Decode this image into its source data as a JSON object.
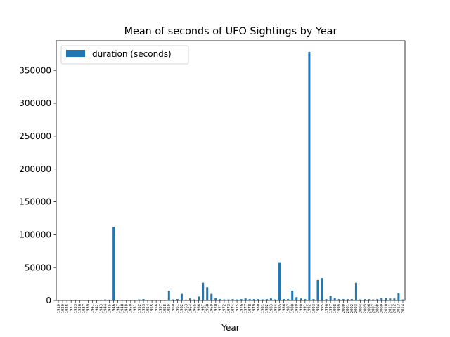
{
  "chart_data": {
    "type": "bar",
    "title": "Mean of seconds of UFO Sightings by Year",
    "xlabel": "Year",
    "ylabel": "",
    "ylim": [
      0,
      395000
    ],
    "yticks": [
      0,
      50000,
      100000,
      150000,
      200000,
      250000,
      300000,
      350000
    ],
    "yticklabels": [
      "0",
      "50000",
      "100000",
      "150000",
      "200000",
      "250000",
      "300000",
      "350000"
    ],
    "legend": "upper-left",
    "grid": false,
    "color": "#1f77b4",
    "categories": [
      "1910",
      "1920",
      "1925",
      "1931",
      "1933",
      "1936",
      "1937",
      "1939",
      "1941",
      "1942",
      "1943",
      "1944",
      "1945",
      "1946",
      "1947",
      "1948",
      "1949",
      "1950",
      "1951",
      "1952",
      "1953",
      "1954",
      "1955",
      "1956",
      "1957",
      "1958",
      "1959",
      "1960",
      "1961",
      "1962",
      "1963",
      "1964",
      "1965",
      "1966",
      "1967",
      "1968",
      "1969",
      "1970",
      "1971",
      "1972",
      "1973",
      "1974",
      "1975",
      "1976",
      "1977",
      "1978",
      "1979",
      "1980",
      "1981",
      "1982",
      "1983",
      "1984",
      "1985",
      "1986",
      "1987",
      "1988",
      "1989",
      "1990",
      "1991",
      "1992",
      "1993",
      "1994",
      "1995",
      "1996",
      "1997",
      "1998",
      "1999",
      "2000",
      "2001",
      "2002",
      "2003",
      "2004",
      "2005",
      "2006",
      "2007",
      "2008",
      "2009",
      "2010",
      "2011",
      "2012",
      "2013",
      "2014"
    ],
    "series": [
      {
        "name": "duration (seconds)",
        "values": [
          300,
          200,
          200,
          600,
          1200,
          300,
          300,
          200,
          300,
          300,
          800,
          1500,
          1200,
          112000,
          400,
          800,
          300,
          400,
          500,
          1500,
          2000,
          500,
          500,
          300,
          400,
          800,
          15000,
          1500,
          2000,
          10000,
          1000,
          3000,
          1500,
          6000,
          27000,
          20000,
          10000,
          4000,
          2000,
          1500,
          1500,
          2000,
          1500,
          2000,
          3000,
          2000,
          2000,
          2000,
          1500,
          2000,
          3000,
          1500,
          58000,
          2000,
          2000,
          15000,
          5000,
          3000,
          2000,
          378000,
          2000,
          31000,
          34000,
          2000,
          7000,
          4000,
          2000,
          2000,
          2000,
          2000,
          27000,
          1500,
          2000,
          2000,
          1500,
          2000,
          4000,
          4000,
          3000,
          3000,
          11000,
          1500
        ]
      }
    ]
  }
}
